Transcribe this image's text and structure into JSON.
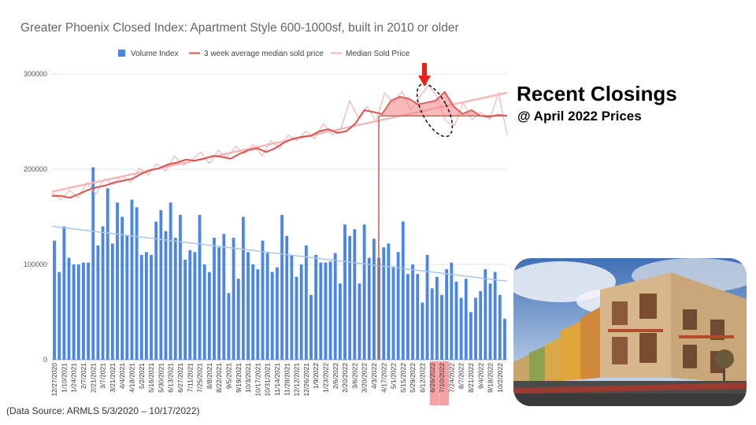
{
  "chart_data": {
    "type": "bar",
    "title": "Greater Phoenix Closed Index: Apartment Style 600-1000sf, built in 2010 or older",
    "xlabel": "",
    "ylabel": "",
    "ylim": [
      0,
      300000
    ],
    "yticks": [
      "0",
      "100000",
      "200000",
      "300000"
    ],
    "grid": true,
    "legend_position": "top",
    "legend": [
      "Volume Index",
      "3 week average median sold price",
      "Median Sold Price"
    ],
    "x_tick_labels": [
      "12/27/2020",
      "1/10/2021",
      "1/24/2021",
      "2/7/2021",
      "2/21/2021",
      "3/7/2021",
      "3/21/2021",
      "4/4/2021",
      "4/18/2021",
      "5/2/2021",
      "5/16/2021",
      "5/30/2021",
      "6/13/2021",
      "6/27/2021",
      "7/11/2021",
      "7/25/2021",
      "8/8/2021",
      "8/22/2021",
      "9/5/2021",
      "9/19/2021",
      "10/3/2021",
      "10/17/2021",
      "10/31/2021",
      "11/14/2021",
      "11/28/2021",
      "12/12/2021",
      "12/26/2021",
      "1/9/2022",
      "1/23/2022",
      "2/6/2022",
      "2/20/2022",
      "3/6/2022",
      "3/20/2022",
      "4/3/2022",
      "4/17/2022",
      "5/1/2022",
      "5/15/2022",
      "5/29/2022",
      "6/12/2022",
      "6/26/2022",
      "7/10/2022",
      "7/24/2022",
      "8/7/2022",
      "8/21/2022",
      "9/4/2022",
      "9/18/2022",
      "10/2/2022"
    ],
    "highlighted_ticks": [
      "6/26/2022",
      "7/10/2022"
    ],
    "series": [
      {
        "name": "Volume Index",
        "type": "bar",
        "color": "#4a86e8",
        "values": [
          125000,
          92000,
          140000,
          107000,
          100000,
          100000,
          102000,
          102000,
          202000,
          120000,
          140000,
          180000,
          122000,
          165000,
          150000,
          130000,
          168000,
          160000,
          110000,
          113000,
          110000,
          145000,
          157000,
          135000,
          165000,
          128000,
          152000,
          105000,
          115000,
          113000,
          152000,
          100000,
          92000,
          128000,
          118000,
          132000,
          70000,
          128000,
          85000,
          150000,
          113000,
          100000,
          95000,
          125000,
          112000,
          92000,
          97000,
          152000,
          130000,
          110000,
          87000,
          100000,
          120000,
          68000,
          110000,
          102000,
          102000,
          103000,
          112000,
          80000,
          142000,
          130000,
          137000,
          80000,
          142000,
          107000,
          127000,
          107000,
          118000,
          122000,
          98000,
          113000,
          145000,
          90000,
          100000,
          90000,
          60000,
          110000,
          75000,
          87000,
          68000,
          95000,
          102000,
          82000,
          65000,
          85000,
          50000,
          65000,
          72000,
          95000,
          80000,
          92000,
          68000,
          43000
        ]
      },
      {
        "name": "3 week average median sold price",
        "type": "line",
        "color": "#d9534f",
        "values": [
          172000,
          172000,
          170000,
          174000,
          178000,
          181000,
          183000,
          186000,
          188000,
          190000,
          195000,
          199000,
          201000,
          205000,
          207000,
          210000,
          209000,
          211000,
          214000,
          213000,
          211000,
          216000,
          220000,
          222000,
          218000,
          222000,
          228000,
          232000,
          234000,
          235000,
          240000,
          242000,
          238000,
          240000,
          248000,
          262000,
          260000,
          258000,
          272000,
          276000,
          274000,
          268000,
          270000,
          272000,
          281000,
          266000,
          258000,
          262000,
          256000,
          255000,
          257000,
          256000
        ]
      },
      {
        "name": "Median Sold Price",
        "type": "line",
        "color": "#f4b6b6",
        "values": [
          175000,
          168000,
          178000,
          170000,
          186000,
          174000,
          190000,
          184000,
          193000,
          186000,
          201000,
          194000,
          206000,
          198000,
          214000,
          204000,
          210000,
          218000,
          206000,
          220000,
          212000,
          224000,
          216000,
          226000,
          214000,
          230000,
          222000,
          236000,
          230000,
          240000,
          232000,
          248000,
          236000,
          242000,
          272000,
          254000,
          266000,
          250000,
          280000,
          270000,
          282000,
          262000,
          276000,
          288000,
          276000,
          250000,
          246000,
          270000,
          252000,
          260000,
          252000,
          280000,
          236000
        ]
      }
    ],
    "annotations": [
      "Recent Closings",
      "@ April 2022 Prices"
    ]
  },
  "headline": "Recent Closings",
  "subheadline": "@ April 2022 Prices",
  "source_note": "(Data Source:  ARMLS 5/3/2020 – 10/17/2022)",
  "colors": {
    "bar": "#4a86e8",
    "avg_line": "#d9534f",
    "median_line": "#f4b6b6",
    "area_fill": "#f08080",
    "arrow": "#e8201c",
    "highlight": "#f28b8b"
  },
  "icons": {
    "legend_swatch": "square",
    "arrow": "down-arrow",
    "photo": "apartment-building-photo"
  }
}
